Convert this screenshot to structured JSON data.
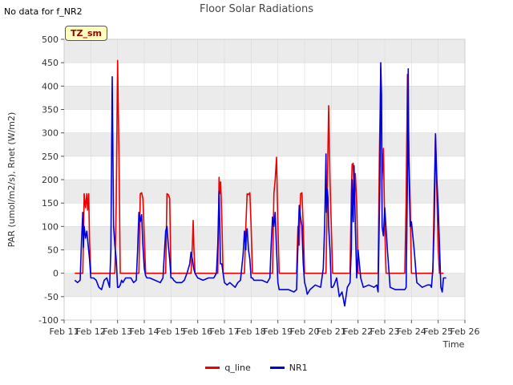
{
  "header": {
    "corner_note": "No data for f_NR2",
    "badge": "TZ_sm"
  },
  "colors": {
    "q_line": "#ee0000",
    "NR1": "#0000dd",
    "band": "#ebebeb",
    "grid": "#d9d9d9"
  },
  "chart_data": {
    "type": "line",
    "title": "Floor Solar Radiations",
    "xlabel": "Time",
    "ylabel": "PAR (umol/m2/s), Rnet (W/m2)",
    "ylim": [
      -100,
      500
    ],
    "yticks": [
      -100,
      -50,
      0,
      50,
      100,
      150,
      200,
      250,
      300,
      350,
      400,
      450,
      500
    ],
    "xlim": [
      11,
      26
    ],
    "xticks": [
      11,
      12,
      13,
      14,
      15,
      16,
      17,
      18,
      19,
      20,
      21,
      22,
      23,
      24,
      25,
      26
    ],
    "xtick_labels": [
      "Feb 11",
      "Feb 12",
      "Feb 13",
      "Feb 14",
      "Feb 15",
      "Feb 16",
      "Feb 17",
      "Feb 18",
      "Feb 19",
      "Feb 20",
      "Feb 21",
      "Feb 22",
      "Feb 23",
      "Feb 24",
      "Feb 25",
      "Feb 26"
    ],
    "legend": {
      "placement": "bottom-center",
      "entries": [
        "q_line",
        "NR1"
      ]
    },
    "series": [
      {
        "name": "q_line",
        "x": [
          11.4,
          11.7,
          11.75,
          11.8,
          11.85,
          11.88,
          11.92,
          11.95,
          12.0,
          12.05,
          12.8,
          12.9,
          12.95,
          13.0,
          13.05,
          13.1,
          13.15,
          13.2,
          13.3,
          13.8,
          13.85,
          13.9,
          13.95,
          14.05,
          14.1,
          14.15,
          14.8,
          14.85,
          14.9,
          14.95,
          15.0,
          15.05,
          15.6,
          15.75,
          15.8,
          15.83,
          15.86,
          15.9,
          16.6,
          16.75,
          16.8,
          16.83,
          16.86,
          16.9,
          16.95,
          17.6,
          17.75,
          17.8,
          17.85,
          17.9,
          17.95,
          18.0,
          18.05,
          18.1,
          18.7,
          18.8,
          18.85,
          18.9,
          18.95,
          19.0,
          19.05,
          19.1,
          19.7,
          19.75,
          19.8,
          19.85,
          19.9,
          19.95,
          20.0,
          20.05,
          20.7,
          20.8,
          20.85,
          20.9,
          20.95,
          21.0,
          21.05,
          21.1,
          21.7,
          21.75,
          21.78,
          21.82,
          21.86,
          21.9,
          21.95,
          22.0,
          22.05,
          22.7,
          22.75,
          22.8,
          22.85,
          22.9,
          22.95,
          23.0,
          23.05,
          23.1,
          23.7,
          23.75,
          23.8,
          23.85,
          23.9,
          23.95,
          24.0,
          24.1,
          24.7,
          24.8,
          24.85,
          24.9,
          24.95,
          25.0,
          25.05,
          25.2
        ],
        "y": [
          0,
          0,
          170,
          140,
          170,
          135,
          170,
          70,
          0,
          0,
          0,
          0,
          150,
          455,
          270,
          0,
          0,
          0,
          0,
          0,
          170,
          172,
          160,
          0,
          0,
          0,
          0,
          170,
          168,
          160,
          0,
          0,
          0,
          0,
          60,
          113,
          50,
          0,
          0,
          0,
          205,
          170,
          195,
          120,
          0,
          0,
          0,
          100,
          170,
          168,
          172,
          100,
          0,
          0,
          0,
          0,
          170,
          200,
          248,
          100,
          0,
          0,
          0,
          100,
          60,
          170,
          172,
          100,
          0,
          0,
          0,
          0,
          170,
          358,
          200,
          100,
          0,
          0,
          0,
          170,
          233,
          235,
          150,
          213,
          150,
          0,
          0,
          0,
          0,
          250,
          440,
          200,
          267,
          100,
          0,
          0,
          0,
          0,
          160,
          425,
          270,
          150,
          0,
          0,
          0,
          0,
          170,
          295,
          170,
          50,
          0,
          0
        ]
      },
      {
        "name": "NR1",
        "x": [
          11.4,
          11.5,
          11.6,
          11.65,
          11.7,
          11.72,
          11.75,
          11.8,
          11.85,
          11.9,
          11.95,
          12.0,
          12.1,
          12.2,
          12.3,
          12.4,
          12.5,
          12.6,
          12.7,
          12.75,
          12.8,
          12.85,
          12.9,
          12.95,
          13.0,
          13.05,
          13.1,
          13.15,
          13.2,
          13.3,
          13.4,
          13.5,
          13.6,
          13.7,
          13.75,
          13.8,
          13.85,
          13.9,
          13.95,
          14.0,
          14.05,
          14.1,
          14.2,
          14.4,
          14.6,
          14.7,
          14.8,
          14.85,
          14.9,
          14.95,
          15.0,
          15.05,
          15.1,
          15.2,
          15.4,
          15.5,
          15.6,
          15.7,
          15.75,
          15.8,
          15.85,
          15.9,
          15.95,
          16.0,
          16.2,
          16.4,
          16.6,
          16.7,
          16.75,
          16.8,
          16.82,
          16.85,
          16.9,
          16.95,
          17.0,
          17.1,
          17.2,
          17.4,
          17.5,
          17.6,
          17.7,
          17.75,
          17.8,
          17.82,
          17.85,
          17.9,
          17.95,
          18.0,
          18.05,
          18.1,
          18.2,
          18.4,
          18.6,
          18.7,
          18.75,
          18.8,
          18.85,
          18.9,
          18.95,
          19.0,
          19.05,
          19.1,
          19.2,
          19.4,
          19.6,
          19.7,
          19.75,
          19.8,
          19.85,
          19.9,
          19.95,
          20.0,
          20.05,
          20.1,
          20.2,
          20.4,
          20.6,
          20.7,
          20.75,
          20.8,
          20.82,
          20.85,
          20.88,
          20.9,
          20.95,
          21.0,
          21.05,
          21.1,
          21.2,
          21.3,
          21.4,
          21.5,
          21.6,
          21.7,
          21.75,
          21.78,
          21.82,
          21.85,
          21.9,
          21.95,
          22.0,
          22.1,
          22.2,
          22.4,
          22.6,
          22.7,
          22.75,
          22.8,
          22.82,
          22.85,
          22.88,
          22.9,
          22.95,
          23.0,
          23.1,
          23.2,
          23.4,
          23.6,
          23.7,
          23.75,
          23.8,
          23.85,
          23.88,
          23.9,
          23.95,
          24.0,
          24.05,
          24.1,
          24.2,
          24.4,
          24.6,
          24.7,
          24.75,
          24.8,
          24.85,
          24.9,
          24.95,
          25.0,
          25.05,
          25.1,
          25.15,
          25.2,
          25.3
        ],
        "y": [
          -15,
          -20,
          -15,
          70,
          130,
          55,
          100,
          75,
          90,
          60,
          30,
          -10,
          -10,
          -15,
          -30,
          -35,
          -15,
          -10,
          -30,
          50,
          420,
          100,
          60,
          30,
          -30,
          -30,
          -25,
          -15,
          -20,
          -10,
          -10,
          -10,
          -20,
          -15,
          50,
          130,
          110,
          125,
          60,
          10,
          -5,
          -10,
          -10,
          -15,
          -20,
          -10,
          90,
          100,
          60,
          30,
          -10,
          -10,
          -15,
          -20,
          -20,
          -15,
          0,
          20,
          45,
          30,
          10,
          0,
          -5,
          -10,
          -15,
          -10,
          -10,
          0,
          60,
          175,
          120,
          20,
          20,
          0,
          -20,
          -25,
          -20,
          -30,
          -20,
          -15,
          40,
          90,
          50,
          90,
          95,
          50,
          30,
          -10,
          -10,
          -15,
          -15,
          -15,
          -20,
          -10,
          60,
          120,
          100,
          130,
          50,
          -20,
          -35,
          -35,
          -35,
          -35,
          -40,
          -35,
          60,
          145,
          120,
          100,
          20,
          -20,
          -30,
          -45,
          -35,
          -25,
          -30,
          10,
          100,
          255,
          130,
          180,
          160,
          100,
          50,
          -30,
          -30,
          -25,
          -10,
          -50,
          -40,
          -70,
          -30,
          -20,
          50,
          200,
          110,
          230,
          100,
          -10,
          50,
          -10,
          -30,
          -25,
          -30,
          -25,
          -40,
          130,
          200,
          450,
          380,
          100,
          80,
          140,
          50,
          -30,
          -35,
          -35,
          -35,
          -35,
          -30,
          200,
          437,
          240,
          100,
          110,
          80,
          50,
          -20,
          -30,
          -25,
          -25,
          -30,
          10,
          100,
          298,
          200,
          140,
          60,
          -30,
          -40,
          -10,
          -10
        ]
      }
    ]
  }
}
